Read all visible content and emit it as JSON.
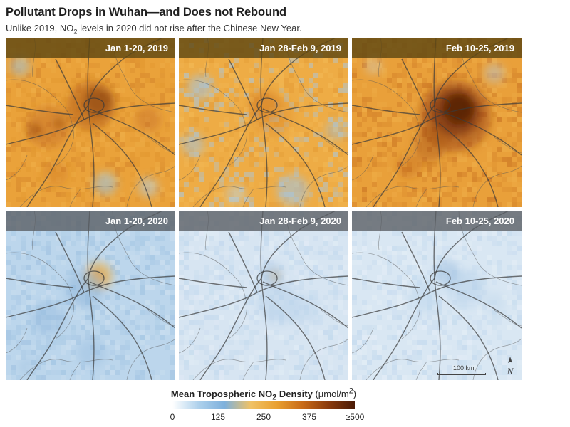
{
  "title": "Pollutant Drops in Wuhan—and Does not Rebound",
  "subtitle": {
    "before": "Unlike 2019, NO",
    "sub": "2",
    "after": " levels in 2020 did not rise after the Chinese New Year."
  },
  "panels": [
    {
      "label": "Jan 1-20, 2019",
      "year": "2019",
      "no2_level": "high"
    },
    {
      "label": "Jan 28-Feb 9, 2019",
      "year": "2019",
      "no2_level": "moderate"
    },
    {
      "label": "Feb 10-25, 2019",
      "year": "2019",
      "no2_level": "very-high"
    },
    {
      "label": "Jan 1-20, 2020",
      "year": "2020",
      "no2_level": "low"
    },
    {
      "label": "Jan 28-Feb 9, 2020",
      "year": "2020",
      "no2_level": "very-low"
    },
    {
      "label": "Feb 10-25, 2020",
      "year": "2020",
      "no2_level": "very-low"
    }
  ],
  "scale_bar": {
    "label": "100 km"
  },
  "north_arrow": {
    "icon": "north-arrow-icon",
    "letter": "N"
  },
  "legend": {
    "title_before": "Mean Tropospheric NO",
    "title_sub": "2",
    "title_after": " Density",
    "unit_before": "(μmol/m",
    "unit_sup": "2",
    "unit_after": ")",
    "ticks": [
      "0",
      "125",
      "250",
      "375",
      "≥500"
    ],
    "colors": [
      "#ffffff",
      "#aed1ec",
      "#7db0dc",
      "#f0c265",
      "#e9a030",
      "#c86a18",
      "#8a3a0c",
      "#4a1a06"
    ]
  },
  "colors": {
    "label_2019_bg": "#5f4812",
    "label_2020_bg": "#585c62",
    "road": "#3a3a3a",
    "border": "#555555"
  }
}
